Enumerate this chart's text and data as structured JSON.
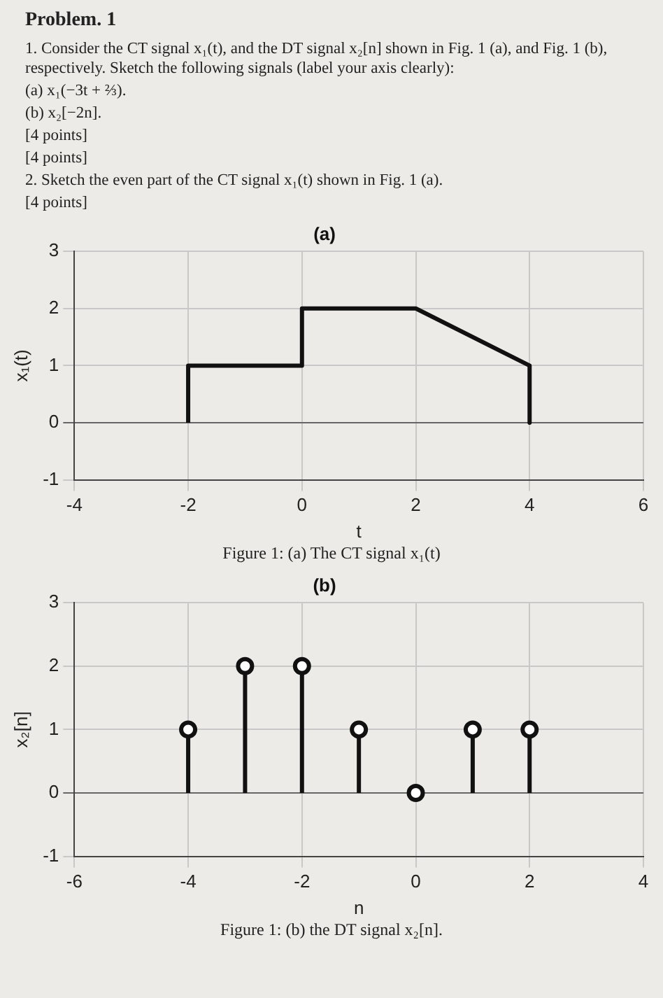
{
  "chart_data": [
    {
      "type": "line",
      "title": "(a)",
      "xlabel": "t",
      "ylabel": "x₁(t)",
      "x": [
        -2,
        -2,
        0,
        0,
        2,
        4,
        4
      ],
      "values": [
        0,
        1,
        1,
        2,
        2,
        1,
        0
      ],
      "color": "#111111",
      "marker": "none",
      "xlim": [
        -4,
        6
      ],
      "xticks": [
        -4,
        -2,
        0,
        2,
        4,
        6
      ],
      "ylim": [
        -1,
        3
      ],
      "yticks": [
        -1,
        0,
        1,
        2,
        3
      ],
      "grid": true,
      "annotations": [
        "Problem. 1",
        "1. Consider the CT signal x₁(t), and the DT signal x₂[n] shown in Fig. 1 (a), and Fig. 1 (b), respectively. Sketch the following signals (label your axis clearly):",
        "(a) x₁(−3t + ⅔).",
        "(b) x₂[−2n].",
        "[4 points]",
        "[4 points]",
        "2. Sketch the even part of the CT signal x₁(t) shown in Fig. 1 (a).",
        "[4 points]",
        "Figure 1: (a) The CT signal x₁(t)"
      ]
    },
    {
      "type": "lollipop",
      "title": "(b)",
      "xlabel": "n",
      "ylabel": "x₂[n]",
      "x": [
        -4,
        -3,
        -2,
        -1,
        0,
        1,
        2
      ],
      "values": [
        1,
        2,
        2,
        1,
        0,
        1,
        1
      ],
      "color": "#111111",
      "marker": "circle",
      "xlim": [
        -6,
        4
      ],
      "xticks": [
        -6,
        -4,
        -2,
        0,
        2,
        4
      ],
      "ylim": [
        -1,
        3
      ],
      "yticks": [
        -1,
        0,
        1,
        2,
        3
      ],
      "grid": true,
      "annotations": [
        "Figure 1: (b) the DT signal x₂[n]."
      ]
    }
  ]
}
